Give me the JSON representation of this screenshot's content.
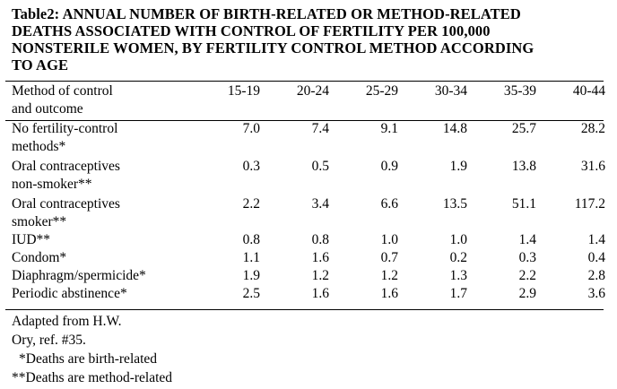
{
  "title": "Table2: ANNUAL NUMBER OF BIRTH-RELATED OR METHOD-RELATED DEATHS ASSOCIATED WITH CONTROL OF FERTILITY PER 100,000 NONSTERILE WOMEN, BY FERTILITY CONTROL METHOD ACCORDING TO AGE",
  "title_lines": [
    "Table2: ANNUAL NUMBER OF BIRTH-RELATED OR METHOD-RELATED",
    "DEATHS ASSOCIATED WITH CONTROL OF FERTILITY PER 100,000",
    "NONSTERILE WOMEN, BY FERTILITY CONTROL METHOD ACCORDING",
    "TO AGE"
  ],
  "table": {
    "header_method_lines": [
      "Method of control",
      "and outcome"
    ],
    "age_groups": [
      "15-19",
      "20-24",
      "25-29",
      "30-34",
      "35-39",
      "40-44"
    ],
    "rows": [
      {
        "label_lines": [
          "No fertility-control",
          "methods*"
        ],
        "values": [
          "7.0",
          "7.4",
          "9.1",
          "14.8",
          "25.7",
          "28.2"
        ]
      },
      {
        "label_lines": [
          "Oral contraceptives",
          "non-smoker**"
        ],
        "values": [
          "0.3",
          "0.5",
          "0.9",
          "1.9",
          "13.8",
          "31.6"
        ]
      },
      {
        "label_lines": [
          "Oral contraceptives",
          "smoker**"
        ],
        "values": [
          "2.2",
          "3.4",
          "6.6",
          "13.5",
          "51.1",
          "117.2"
        ]
      },
      {
        "label_lines": [
          "IUD**"
        ],
        "values": [
          "0.8",
          "0.8",
          "1.0",
          "1.0",
          "1.4",
          "1.4"
        ]
      },
      {
        "label_lines": [
          "Condom*"
        ],
        "values": [
          "1.1",
          "1.6",
          "0.7",
          "0.2",
          "0.3",
          "0.4"
        ]
      },
      {
        "label_lines": [
          "Diaphragm/spermicide*"
        ],
        "values": [
          "1.9",
          "1.2",
          "1.2",
          "1.3",
          "2.2",
          "2.8"
        ]
      },
      {
        "label_lines": [
          "Periodic abstinence*"
        ],
        "values": [
          "2.5",
          "1.6",
          "1.6",
          "1.7",
          "2.9",
          "3.6"
        ]
      }
    ]
  },
  "footnotes": {
    "source_lines": [
      "Adapted from H.W.",
      "Ory, ref. #35."
    ],
    "birth_related": "*Deaths are birth-related",
    "method_related": "**Deaths are method-related"
  }
}
